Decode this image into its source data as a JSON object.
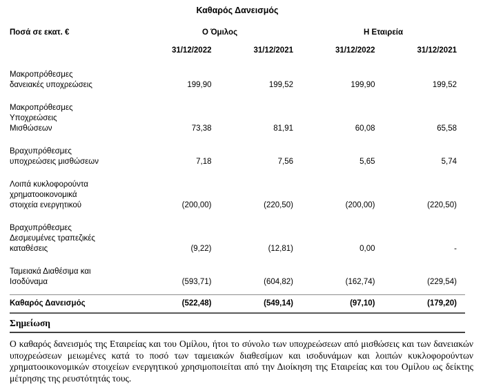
{
  "title": "Καθαρός Δανεισμός",
  "table": {
    "unit_label": "Ποσά σε εκατ. €",
    "group_headers": [
      "Ο Όμιλος",
      "Η Εταιρεία"
    ],
    "date_headers": [
      "31/12/2022",
      "31/12/2021",
      "31/12/2022",
      "31/12/2021"
    ],
    "rows": [
      {
        "label": "Μακροπρόθεσμες\nδανειακές υποχρεώσεις",
        "values": [
          "199,90",
          "199,52",
          "199,90",
          "199,52"
        ]
      },
      {
        "label": "Μακροπρόθεσμες\nΥποχρεώσεις\nΜισθώσεων",
        "values": [
          "73,38",
          "81,91",
          "60,08",
          "65,58"
        ]
      },
      {
        "label": "Βραχυπρόθεσμες\nυποχρεώσεις μισθώσεων",
        "values": [
          "7,18",
          "7,56",
          "5,65",
          "5,74"
        ]
      },
      {
        "label": "Λοιπά κυκλοφορούντα\nχρηματοοικονομικά\nστοιχεία ενεργητικού",
        "values": [
          "(200,00)",
          "(220,50)",
          "(200,00)",
          "(220,50)"
        ]
      },
      {
        "label": "Βραχυπρόθεσμες\nΔεσμευμένες τραπεζικές\nκαταθέσεις",
        "values": [
          "(9,22)",
          "(12,81)",
          "0,00",
          "-"
        ]
      },
      {
        "label": "Ταμειακά Διαθέσιμα και\nΙσοδύναμα",
        "values": [
          "(593,71)",
          "(604,82)",
          "(162,74)",
          "(229,54)"
        ]
      }
    ],
    "total_row": {
      "label": "Καθαρός Δανεισμός",
      "values": [
        "(522,48)",
        "(549,14)",
        "(97,10)",
        "(179,20)"
      ]
    }
  },
  "note": {
    "heading": "Σημείωση",
    "text": "Ο καθαρός δανεισμός της Εταιρείας και του Ομίλου, ήτοι το σύνολο των υποχρεώσεων από μισθώσεις και των δανειακών υποχρεώσεων μειωμένες κατά το ποσό των ταμειακών διαθεσίμων και ισοδυνάμων και λοιπών κυκλοφορούντων χρηματοοικονομικών στοιχείων ενεργητικού χρησιμοποιείται από την Διοίκηση της Εταιρείας και του Ομίλου ως δείκτης μέτρησης της ρευστότητάς τους."
  }
}
